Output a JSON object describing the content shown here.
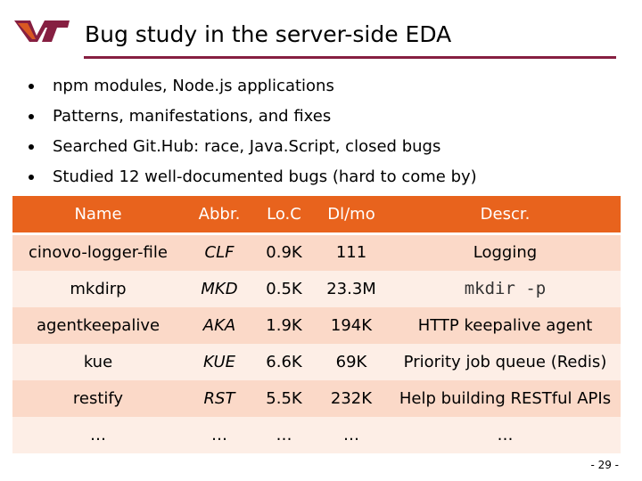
{
  "slide": {
    "title": "Bug study in the server-side EDA",
    "bullets": [
      "npm modules, Node.js applications",
      "Patterns, manifestations, and fixes",
      "Searched Git.Hub: race, Java.Script, closed bugs",
      "Studied 12 well-documented bugs (hard to come by)"
    ],
    "page_number": "- 29 -",
    "logo_text": "VT"
  },
  "colors": {
    "accent_maroon": "#861f41",
    "header_orange": "#e8631d",
    "row_dark": "#fbd9c8",
    "row_light": "#fdeee6"
  },
  "table": {
    "headers": [
      "Name",
      "Abbr.",
      "Lo.C",
      "Dl/mo",
      "Descr."
    ],
    "rows": [
      [
        "cinovo-logger-file",
        "CLF",
        "0.9K",
        "111",
        "Logging"
      ],
      [
        "mkdirp",
        "MKD",
        "0.5K",
        "23.3M",
        "mkdir -p"
      ],
      [
        "agentkeepalive",
        "AKA",
        "1.9K",
        "194K",
        "HTTP keepalive agent"
      ],
      [
        "kue",
        "KUE",
        "6.6K",
        "69K",
        "Priority job queue (Redis)"
      ],
      [
        "restify",
        "RST",
        "5.5K",
        "232K",
        "Help building RESTful APIs"
      ],
      [
        "…",
        "…",
        "…",
        "…",
        "…"
      ]
    ]
  }
}
